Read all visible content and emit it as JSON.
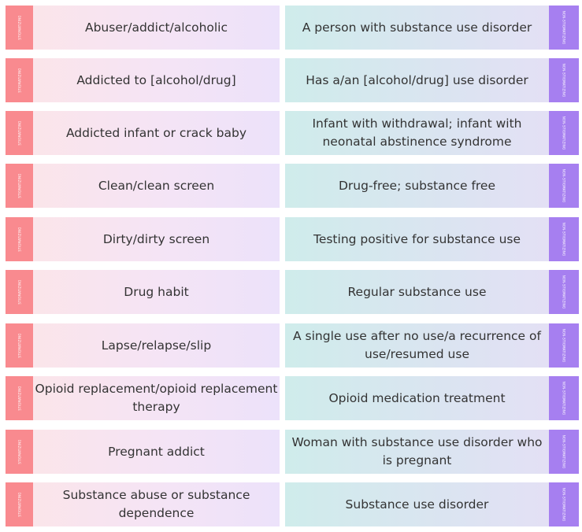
{
  "labels": {
    "left_tag": "STIGMATIZING",
    "right_tag": "NON-STIGMATIZING"
  },
  "colors": {
    "left_tag": "#f98a8f",
    "right_tag": "#a67ff0",
    "text": "#333333"
  },
  "rows": [
    {
      "stigmatizing": "Abuser/addict/alcoholic",
      "non_stigmatizing": "A person with substance use disorder"
    },
    {
      "stigmatizing": "Addicted to [alcohol/drug]",
      "non_stigmatizing": "Has a/an [alcohol/drug] use disorder"
    },
    {
      "stigmatizing": "Addicted infant or crack baby",
      "non_stigmatizing": "Infant with withdrawal; infant with neonatal abstinence syndrome"
    },
    {
      "stigmatizing": "Clean/clean screen",
      "non_stigmatizing": "Drug-free; substance free"
    },
    {
      "stigmatizing": "Dirty/dirty screen",
      "non_stigmatizing": "Testing positive for substance use"
    },
    {
      "stigmatizing": "Drug habit",
      "non_stigmatizing": "Regular substance use"
    },
    {
      "stigmatizing": "Lapse/relapse/slip",
      "non_stigmatizing": "A single use after no use/a recurrence of use/resumed use"
    },
    {
      "stigmatizing": "Opioid replacement/opioid replacement therapy",
      "non_stigmatizing": "Opioid medication treatment"
    },
    {
      "stigmatizing": "Pregnant addict",
      "non_stigmatizing": "Woman with substance use disorder who is pregnant"
    },
    {
      "stigmatizing": "Substance abuse or substance dependence",
      "non_stigmatizing": "Substance use disorder"
    }
  ]
}
